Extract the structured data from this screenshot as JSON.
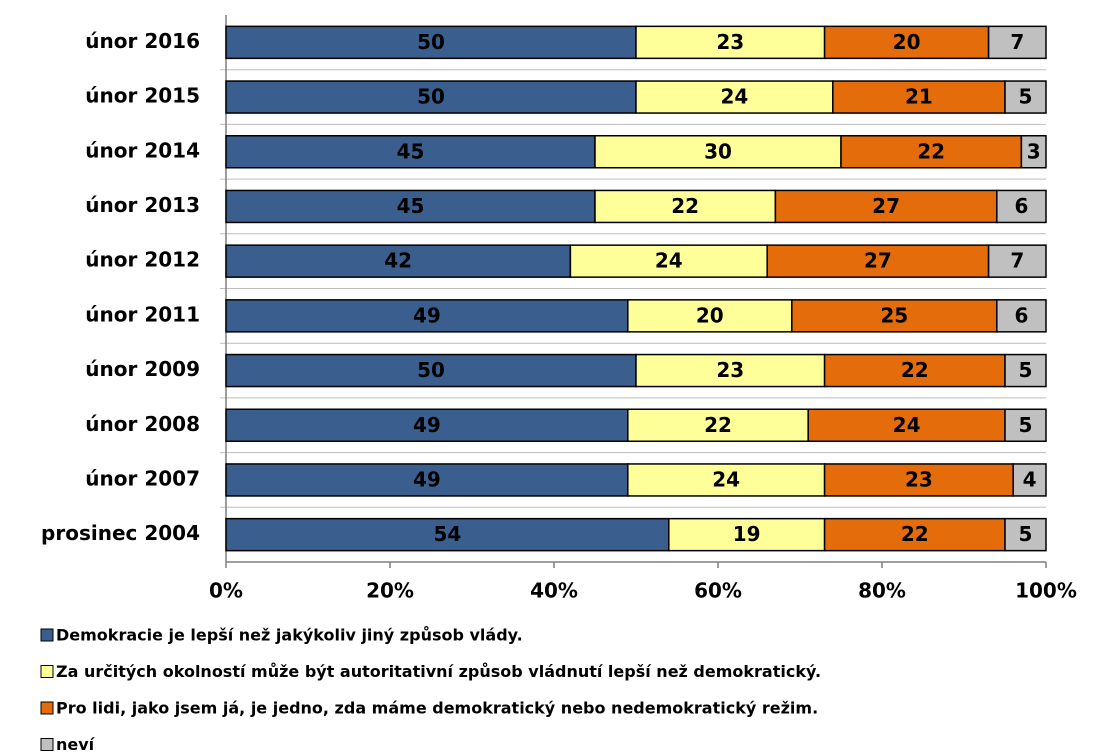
{
  "chart_data": {
    "type": "stacked-bar-horizontal",
    "categories": [
      "únor 2016",
      "únor 2015",
      "únor 2014",
      "únor 2013",
      "únor 2012",
      "únor 2011",
      "únor 2009",
      "únor 2008",
      "únor 2007",
      "prosinec 2004"
    ],
    "series": [
      {
        "name": "Demokracie je lepší než jakýkoliv jiný způsob vlády.",
        "color": "#3a5f8f",
        "values": [
          50,
          50,
          45,
          45,
          42,
          49,
          50,
          49,
          49,
          54
        ]
      },
      {
        "name": "Za určitých okolností může být autoritativní způsob vládnutí lepší než demokratický.",
        "color": "#ffff99",
        "values": [
          23,
          24,
          30,
          22,
          24,
          20,
          23,
          22,
          24,
          19
        ]
      },
      {
        "name": "Pro lidi, jako jsem já, je jedno, zda máme demokratický nebo nedemokratický režim.",
        "color": "#e46c0a",
        "values": [
          20,
          21,
          22,
          27,
          27,
          25,
          22,
          24,
          23,
          22
        ]
      },
      {
        "name": "neví",
        "color": "#c0c0c0",
        "values": [
          7,
          5,
          3,
          6,
          7,
          6,
          5,
          5,
          4,
          5
        ]
      }
    ],
    "xlim": [
      0,
      100
    ],
    "xticks": [
      {
        "value": 0,
        "label": "0%"
      },
      {
        "value": 20,
        "label": "20%"
      },
      {
        "value": 40,
        "label": "40%"
      },
      {
        "value": 60,
        "label": "60%"
      },
      {
        "value": 80,
        "label": "80%"
      },
      {
        "value": 100,
        "label": "100%"
      }
    ],
    "legend": "bottom"
  }
}
